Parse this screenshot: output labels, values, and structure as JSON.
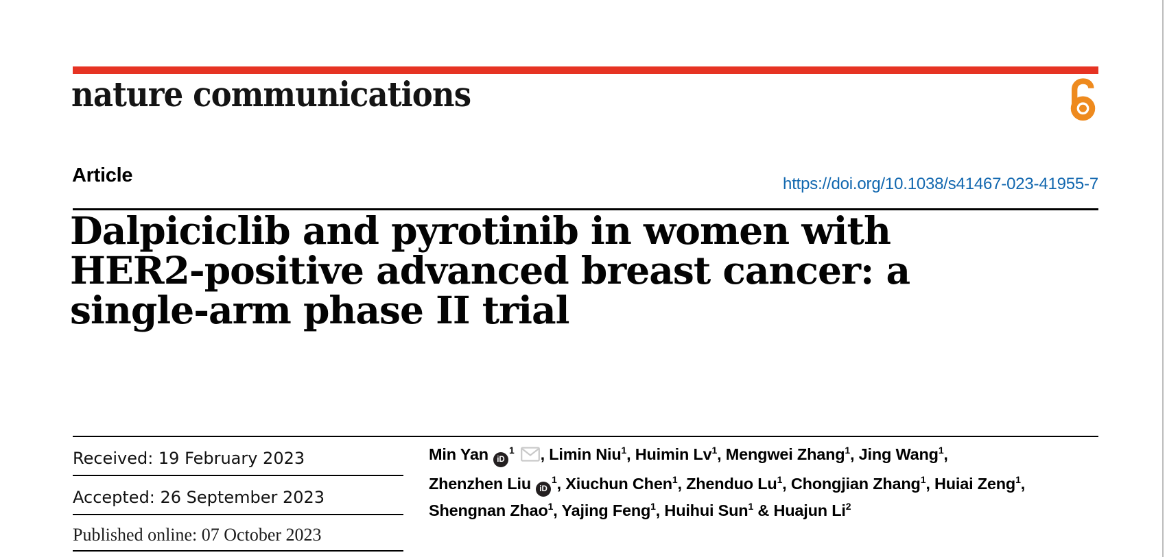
{
  "brand": {
    "logo_text": "nature communications",
    "open_access_icon": "open-access-lock"
  },
  "colors": {
    "bar_red": "#e63323",
    "link_blue": "#1167af",
    "open_access_orange": "#ee8a1e",
    "envelope_gray": "#c9c9c9",
    "orcid_black": "#231f20"
  },
  "header": {
    "article_label": "Article",
    "doi_link": "https://doi.org/10.1038/s41467-023-41955-7"
  },
  "title": {
    "lines": [
      "Dalpiciclib and pyrotinib in women with",
      "HER2-positive advanced breast cancer: a",
      "single-arm phase II trial"
    ],
    "full": "Dalpiciclib and pyrotinib in women with HER2-positive advanced breast cancer: a single-arm phase II trial"
  },
  "dates": {
    "rows": [
      {
        "label": "Received",
        "value": "19 February 2023",
        "text": "Received: 19 February 2023"
      },
      {
        "label": "Accepted",
        "value": "26 September 2023",
        "text": "Accepted: 26 September 2023"
      },
      {
        "label": "Published online",
        "value": "07 October 2023",
        "text": "Published online: 07 October 2023"
      }
    ]
  },
  "authors": {
    "lines": [
      {
        "segments": [
          {
            "t": "Min Yan"
          },
          {
            "icon": "orcid"
          },
          {
            "sup": "1"
          },
          {
            "icon": "envelope"
          },
          {
            "t": ", Limin Niu"
          },
          {
            "sup": "1"
          },
          {
            "t": ", Huimin Lv"
          },
          {
            "sup": "1"
          },
          {
            "t": ", Mengwei Zhang"
          },
          {
            "sup": "1"
          },
          {
            "t": ", Jing Wang"
          },
          {
            "sup": "1"
          },
          {
            "t": ","
          }
        ]
      },
      {
        "segments": [
          {
            "t": "Zhenzhen Liu"
          },
          {
            "icon": "orcid"
          },
          {
            "sup": "1"
          },
          {
            "t": ", Xiuchun Chen"
          },
          {
            "sup": "1"
          },
          {
            "t": ", Zhenduo Lu"
          },
          {
            "sup": "1"
          },
          {
            "t": ", Chongjian Zhang"
          },
          {
            "sup": "1"
          },
          {
            "t": ", Huiai Zeng"
          },
          {
            "sup": "1"
          },
          {
            "t": ","
          }
        ]
      },
      {
        "segments": [
          {
            "t": "Shengnan Zhao"
          },
          {
            "sup": "1"
          },
          {
            "t": ", Yajing Feng"
          },
          {
            "sup": "1"
          },
          {
            "t": ", Huihui Sun"
          },
          {
            "sup": "1"
          },
          {
            "t": " & Huajun Li"
          },
          {
            "sup": "2"
          }
        ]
      }
    ]
  }
}
